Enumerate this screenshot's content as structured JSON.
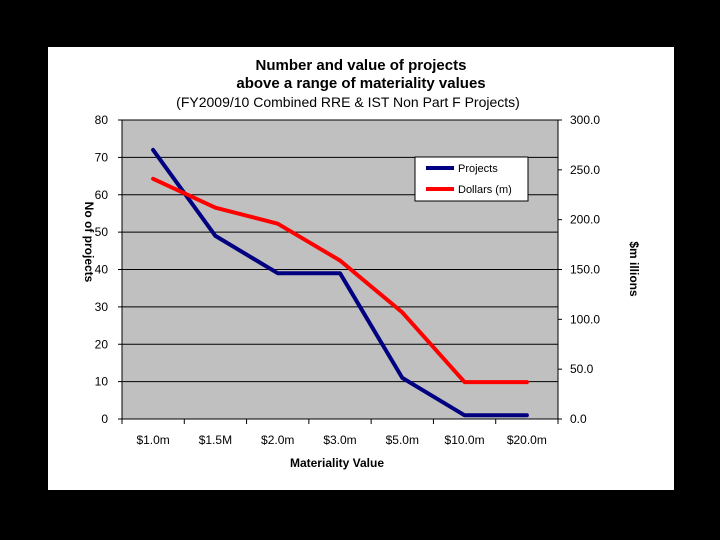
{
  "chart_data": {
    "type": "line",
    "title": [
      "Number and value of projects",
      "above a range of materiality values"
    ],
    "subtitle": "(FY2009/10 Combined RRE & IST Non Part F Projects)",
    "xlabel": "Materiality Value",
    "ylabel_left": "No of projects",
    "ylabel_right": "$m illions",
    "categories": [
      "$1.0m",
      "$1.5M",
      "$2.0m",
      "$3.0m",
      "$5.0m",
      "$10.0m",
      "$20.0m"
    ],
    "ylim_left": [
      0,
      80
    ],
    "yticks_left": [
      "0",
      "10",
      "20",
      "30",
      "40",
      "50",
      "60",
      "70",
      "80"
    ],
    "ylim_right": [
      0,
      300
    ],
    "yticks_right": [
      "0.0",
      "50.0",
      "100.0",
      "150.0",
      "200.0",
      "250.0",
      "300.0"
    ],
    "grid": true,
    "plot_background": "#c0c0c0",
    "legend_position": "top-right",
    "series": [
      {
        "name": "Projects",
        "axis": "left",
        "color": "#000080",
        "values": [
          72,
          49,
          39,
          39,
          11,
          1,
          1
        ]
      },
      {
        "name": "Dollars (m)",
        "axis": "right",
        "color": "#ff0000",
        "values": [
          241,
          212,
          196,
          159,
          107,
          37,
          37
        ]
      }
    ]
  }
}
